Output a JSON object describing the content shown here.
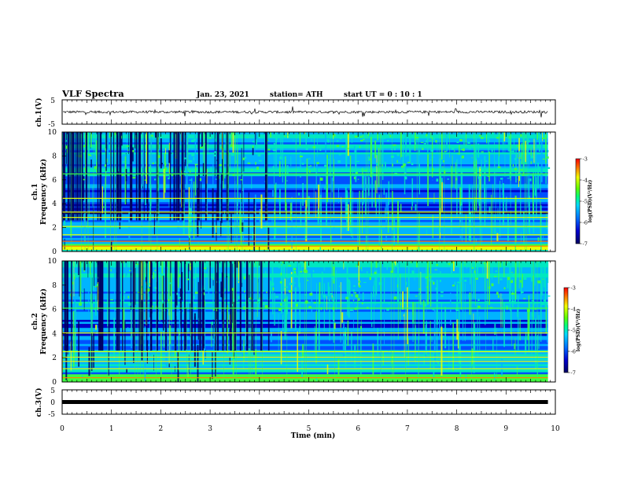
{
  "header": {
    "title": "VLF Spectra",
    "date": "Jan. 23, 2021",
    "station": "station= ATH",
    "start": "start UT =  0 : 10 : 1"
  },
  "colors": {
    "spectrogram_palette": [
      "#000060",
      "#0000c8",
      "#0050ff",
      "#00b4ff",
      "#00e8c0",
      "#40ff40",
      "#e8ff00",
      "#ff8000",
      "#ff0000"
    ]
  },
  "chart_data": [
    {
      "type": "line",
      "panel": "ch.1 waveform",
      "ylabel": "ch.1(V)",
      "ylim": [
        -5,
        5
      ],
      "yticks": [
        "5",
        "-5"
      ],
      "baseline": 0,
      "noise_amplitude": 0.5
    },
    {
      "type": "heatmap",
      "panel": "ch.1 spectrogram",
      "ylabel_line1": "ch.1",
      "ylabel_line2": "Frequency (kHz)",
      "ylim": [
        0,
        10
      ],
      "yticks": [
        "0",
        "2",
        "4",
        "6",
        "8",
        "10"
      ],
      "xlim": [
        0,
        10
      ],
      "strong_lines_khz": [
        0.45,
        0.85,
        1.4,
        2.1,
        2.85,
        3.3,
        4.45,
        6.5
      ],
      "dark_band_khz": [
        3.1,
        4.2
      ],
      "colorbar": {
        "label": "log(PSD)(V²/Hz)",
        "range": [
          -7,
          -3
        ],
        "ticks": [
          "-3",
          "-4",
          "-5",
          "-6",
          "-7"
        ]
      }
    },
    {
      "type": "heatmap",
      "panel": "ch.2 spectrogram",
      "ylabel_line1": "ch.2",
      "ylabel_line2": "Frequency (kHz)",
      "ylim": [
        0,
        10
      ],
      "yticks": [
        "0",
        "2",
        "4",
        "6",
        "8",
        "10"
      ],
      "xlim": [
        0,
        10
      ],
      "strong_lines_khz": [
        0.35,
        1.1,
        1.7,
        2.05,
        2.5,
        4.05,
        6.1
      ],
      "dark_band_khz": [
        2.4,
        2.9
      ],
      "colorbar": {
        "label": "log(PSD)(V²/Hz)",
        "range": [
          -7,
          -3
        ],
        "ticks": [
          "-3",
          "-4",
          "-5",
          "-6",
          "-7"
        ]
      }
    },
    {
      "type": "line",
      "panel": "ch.3 waveform",
      "ylabel": "ch.3(V)",
      "ylim": [
        -5,
        5
      ],
      "yticks": [
        "5",
        "0",
        "-5"
      ],
      "baseline": 0,
      "noise_amplitude": 0.15
    }
  ],
  "xaxis": {
    "label": "Time (min)",
    "xlim": [
      0,
      10
    ],
    "ticks": [
      "0",
      "1",
      "2",
      "3",
      "4",
      "5",
      "6",
      "7",
      "8",
      "9",
      "10"
    ],
    "data_end_min": 9.85
  }
}
